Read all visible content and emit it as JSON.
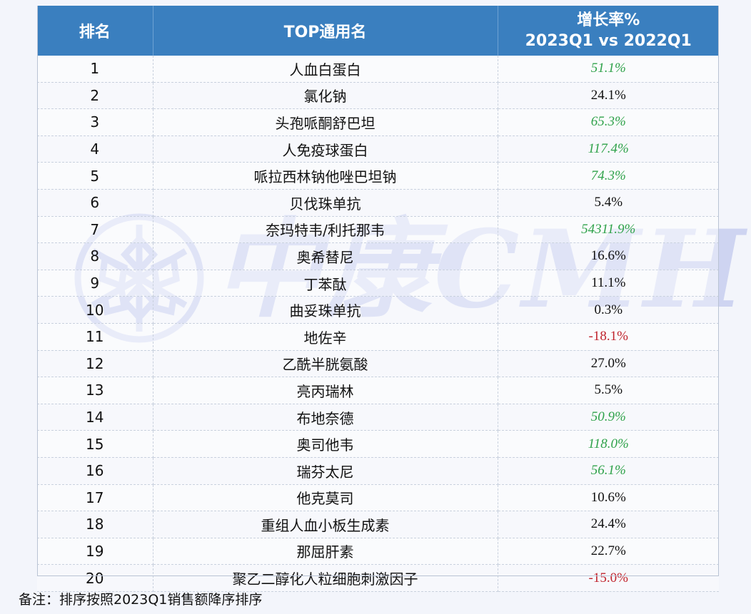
{
  "table": {
    "headers": {
      "rank": "排名",
      "name": "TOP通用名",
      "rate_line1": "增长率%",
      "rate_line2": "2023Q1 vs 2022Q1"
    },
    "rows": [
      {
        "rank": "1",
        "name": "人血白蛋白",
        "rate": "51.1%",
        "style": "green"
      },
      {
        "rank": "2",
        "name": "氯化钠",
        "rate": "24.1%",
        "style": "black"
      },
      {
        "rank": "3",
        "name": "头孢哌酮舒巴坦",
        "rate": "65.3%",
        "style": "green"
      },
      {
        "rank": "4",
        "name": "人免疫球蛋白",
        "rate": "117.4%",
        "style": "green"
      },
      {
        "rank": "5",
        "name": "哌拉西林钠他唑巴坦钠",
        "rate": "74.3%",
        "style": "green"
      },
      {
        "rank": "6",
        "name": "贝伐珠单抗",
        "rate": "5.4%",
        "style": "black"
      },
      {
        "rank": "7",
        "name": "奈玛特韦/利托那韦",
        "rate": "54311.9%",
        "style": "green"
      },
      {
        "rank": "8",
        "name": "奥希替尼",
        "rate": "16.6%",
        "style": "black"
      },
      {
        "rank": "9",
        "name": "丁苯酞",
        "rate": "11.1%",
        "style": "black"
      },
      {
        "rank": "10",
        "name": "曲妥珠单抗",
        "rate": "0.3%",
        "style": "black"
      },
      {
        "rank": "11",
        "name": "地佐辛",
        "rate": "-18.1%",
        "style": "red"
      },
      {
        "rank": "12",
        "name": "乙酰半胱氨酸",
        "rate": "27.0%",
        "style": "black"
      },
      {
        "rank": "13",
        "name": "亮丙瑞林",
        "rate": "5.5%",
        "style": "black"
      },
      {
        "rank": "14",
        "name": "布地奈德",
        "rate": "50.9%",
        "style": "green"
      },
      {
        "rank": "15",
        "name": "奥司他韦",
        "rate": "118.0%",
        "style": "green"
      },
      {
        "rank": "16",
        "name": "瑞芬太尼",
        "rate": "56.1%",
        "style": "green"
      },
      {
        "rank": "17",
        "name": "他克莫司",
        "rate": "10.6%",
        "style": "black"
      },
      {
        "rank": "18",
        "name": "重组人血小板生成素",
        "rate": "24.4%",
        "style": "black"
      },
      {
        "rank": "19",
        "name": "那屈肝素",
        "rate": "22.7%",
        "style": "black"
      },
      {
        "rank": "20",
        "name": "聚乙二醇化人粒细胞刺激因子",
        "rate": "-15.0%",
        "style": "red"
      }
    ]
  },
  "colors": {
    "header_bg": "#3a7fbf",
    "positive_highlight": "#2fa24a",
    "negative": "#c0242d"
  },
  "watermark": {
    "text": "中康CMH",
    "icon": "snowflake-logo-icon"
  },
  "note": {
    "text": "备注：排序按照2023Q1销售额降序排序"
  }
}
